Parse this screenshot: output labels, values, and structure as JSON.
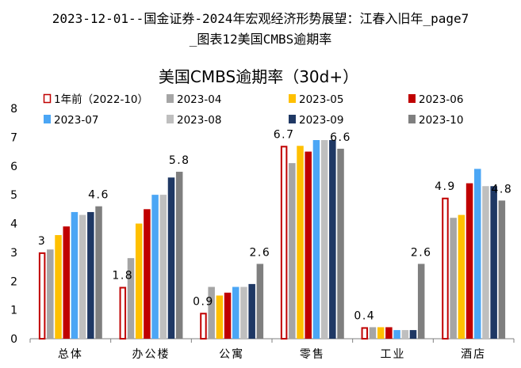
{
  "page": {
    "title_line1": "2023-12-01--国金证券-2024年宏观经济形势展望：江春入旧年_page7",
    "title_line2": "_图表12美国CMBS逾期率"
  },
  "chart_data": {
    "type": "bar",
    "title": "美国CMBS逾期率（30d+）",
    "xlabel": "",
    "ylabel": "",
    "ylim": [
      0,
      8
    ],
    "yticks": [
      "0",
      "1",
      "2",
      "3",
      "4",
      "5",
      "6",
      "7",
      "8"
    ],
    "categories": [
      "总体",
      "办公楼",
      "公寓",
      "零售",
      "工业",
      "酒店"
    ],
    "legend_position": "top",
    "series": [
      {
        "name": "1年前（2022-10）",
        "color": "#C00000",
        "hollow": true,
        "values": [
          3.0,
          1.8,
          0.9,
          6.7,
          0.4,
          4.9
        ]
      },
      {
        "name": "2023-04",
        "color": "#A5A5A5",
        "hollow": false,
        "values": [
          3.1,
          2.8,
          1.8,
          6.1,
          0.4,
          4.2
        ]
      },
      {
        "name": "2023-05",
        "color": "#FFC000",
        "hollow": false,
        "values": [
          3.6,
          4.0,
          1.5,
          6.7,
          0.4,
          4.3
        ]
      },
      {
        "name": "2023-06",
        "color": "#C00000",
        "hollow": false,
        "values": [
          3.9,
          4.5,
          1.6,
          6.5,
          0.4,
          5.4
        ]
      },
      {
        "name": "2023-07",
        "color": "#4BA6F5",
        "hollow": false,
        "values": [
          4.4,
          5.0,
          1.8,
          6.9,
          0.3,
          5.9
        ]
      },
      {
        "name": "2023-08",
        "color": "#BFBFBF",
        "hollow": false,
        "values": [
          4.3,
          5.0,
          1.8,
          6.9,
          0.3,
          5.3
        ]
      },
      {
        "name": "2023-09",
        "color": "#1F3864",
        "hollow": false,
        "values": [
          4.4,
          5.6,
          1.9,
          6.9,
          0.3,
          5.3
        ]
      },
      {
        "name": "2023-10",
        "color": "#7F7F7F",
        "hollow": false,
        "values": [
          4.6,
          5.8,
          2.6,
          6.6,
          2.6,
          4.8
        ]
      }
    ],
    "data_labels": [
      {
        "category": 0,
        "series": 0,
        "text": "3"
      },
      {
        "category": 0,
        "series": 7,
        "text": "4.6"
      },
      {
        "category": 1,
        "series": 0,
        "text": "1.8"
      },
      {
        "category": 1,
        "series": 7,
        "text": "5.8"
      },
      {
        "category": 2,
        "series": 0,
        "text": "0.9"
      },
      {
        "category": 2,
        "series": 7,
        "text": "2.6"
      },
      {
        "category": 3,
        "series": 0,
        "text": "6.7"
      },
      {
        "category": 3,
        "series": 7,
        "text": "6.6"
      },
      {
        "category": 4,
        "series": 0,
        "text": "0.4"
      },
      {
        "category": 4,
        "series": 7,
        "text": "2.6"
      },
      {
        "category": 5,
        "series": 0,
        "text": "4.9"
      },
      {
        "category": 5,
        "series": 7,
        "text": "4.8"
      }
    ]
  }
}
